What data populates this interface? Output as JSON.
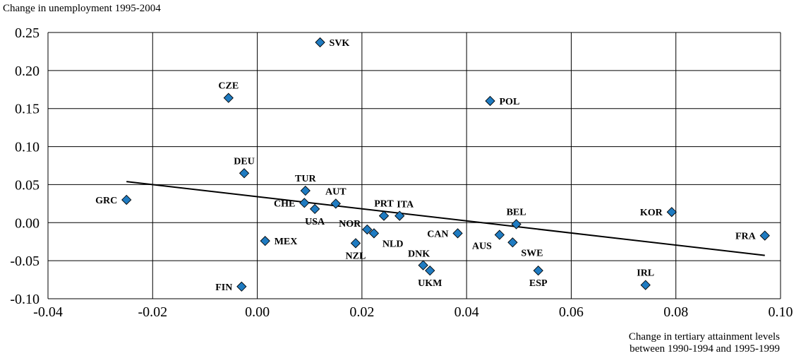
{
  "chart_data": {
    "type": "scatter",
    "ylabel": "Change in unemployment 1995-2004",
    "xlabel_lines": [
      "Change in tertiary attainment levels",
      "between 1990-1994 and 1995-1999"
    ],
    "xlim": [
      -0.04,
      0.1
    ],
    "ylim": [
      -0.1,
      0.25
    ],
    "xticks": [
      "-0.04",
      "-0.02",
      "0.00",
      "0.02",
      "0.04",
      "0.06",
      "0.08",
      "0.10"
    ],
    "yticks": [
      "0.25",
      "0.20",
      "0.15",
      "0.10",
      "0.05",
      "0.00",
      "-0.05",
      "-0.10"
    ],
    "grid": true,
    "marker_color": "#1f7bc1",
    "trendline": {
      "x": [
        -0.025,
        0.097
      ],
      "y": [
        0.054,
        -0.043
      ]
    },
    "points": [
      {
        "label": "SVK",
        "x": 0.012,
        "y": 0.237,
        "pos": "right"
      },
      {
        "label": "CZE",
        "x": -0.0055,
        "y": 0.164,
        "pos": "above"
      },
      {
        "label": "POL",
        "x": 0.0445,
        "y": 0.16,
        "pos": "right"
      },
      {
        "label": "DEU",
        "x": -0.0025,
        "y": 0.065,
        "pos": "above"
      },
      {
        "label": "TUR",
        "x": 0.0092,
        "y": 0.042,
        "pos": "above"
      },
      {
        "label": "GRC",
        "x": -0.025,
        "y": 0.03,
        "pos": "left"
      },
      {
        "label": "AUT",
        "x": 0.015,
        "y": 0.025,
        "pos": "above"
      },
      {
        "label": "CHE",
        "x": 0.009,
        "y": 0.026,
        "pos": "left"
      },
      {
        "label": "USA",
        "x": 0.011,
        "y": 0.018,
        "pos": "below"
      },
      {
        "label": "PRT",
        "x": 0.0242,
        "y": 0.009,
        "pos": "above"
      },
      {
        "label": "ITA",
        "x": 0.0272,
        "y": 0.009,
        "pos": "aboveright"
      },
      {
        "label": "KOR",
        "x": 0.0792,
        "y": 0.014,
        "pos": "left"
      },
      {
        "label": "BEL",
        "x": 0.0495,
        "y": -0.002,
        "pos": "above"
      },
      {
        "label": "NOR",
        "x": 0.021,
        "y": -0.009,
        "pos": "leftup"
      },
      {
        "label": "NLD",
        "x": 0.0223,
        "y": -0.014,
        "pos": "belowright"
      },
      {
        "label": "CAN",
        "x": 0.0383,
        "y": -0.014,
        "pos": "left"
      },
      {
        "label": "AUS",
        "x": 0.0463,
        "y": -0.016,
        "pos": "belowleft"
      },
      {
        "label": "FRA",
        "x": 0.097,
        "y": -0.017,
        "pos": "left"
      },
      {
        "label": "MEX",
        "x": 0.0015,
        "y": -0.024,
        "pos": "right"
      },
      {
        "label": "SWE",
        "x": 0.0488,
        "y": -0.026,
        "pos": "belowright"
      },
      {
        "label": "NZL",
        "x": 0.0188,
        "y": -0.027,
        "pos": "below"
      },
      {
        "label": "DNK",
        "x": 0.0317,
        "y": -0.056,
        "pos": "aboveleft"
      },
      {
        "label": "UKM",
        "x": 0.033,
        "y": -0.063,
        "pos": "below"
      },
      {
        "label": "ESP",
        "x": 0.0537,
        "y": -0.063,
        "pos": "below"
      },
      {
        "label": "FIN",
        "x": -0.003,
        "y": -0.084,
        "pos": "left"
      },
      {
        "label": "IRL",
        "x": 0.0742,
        "y": -0.082,
        "pos": "above"
      }
    ]
  }
}
